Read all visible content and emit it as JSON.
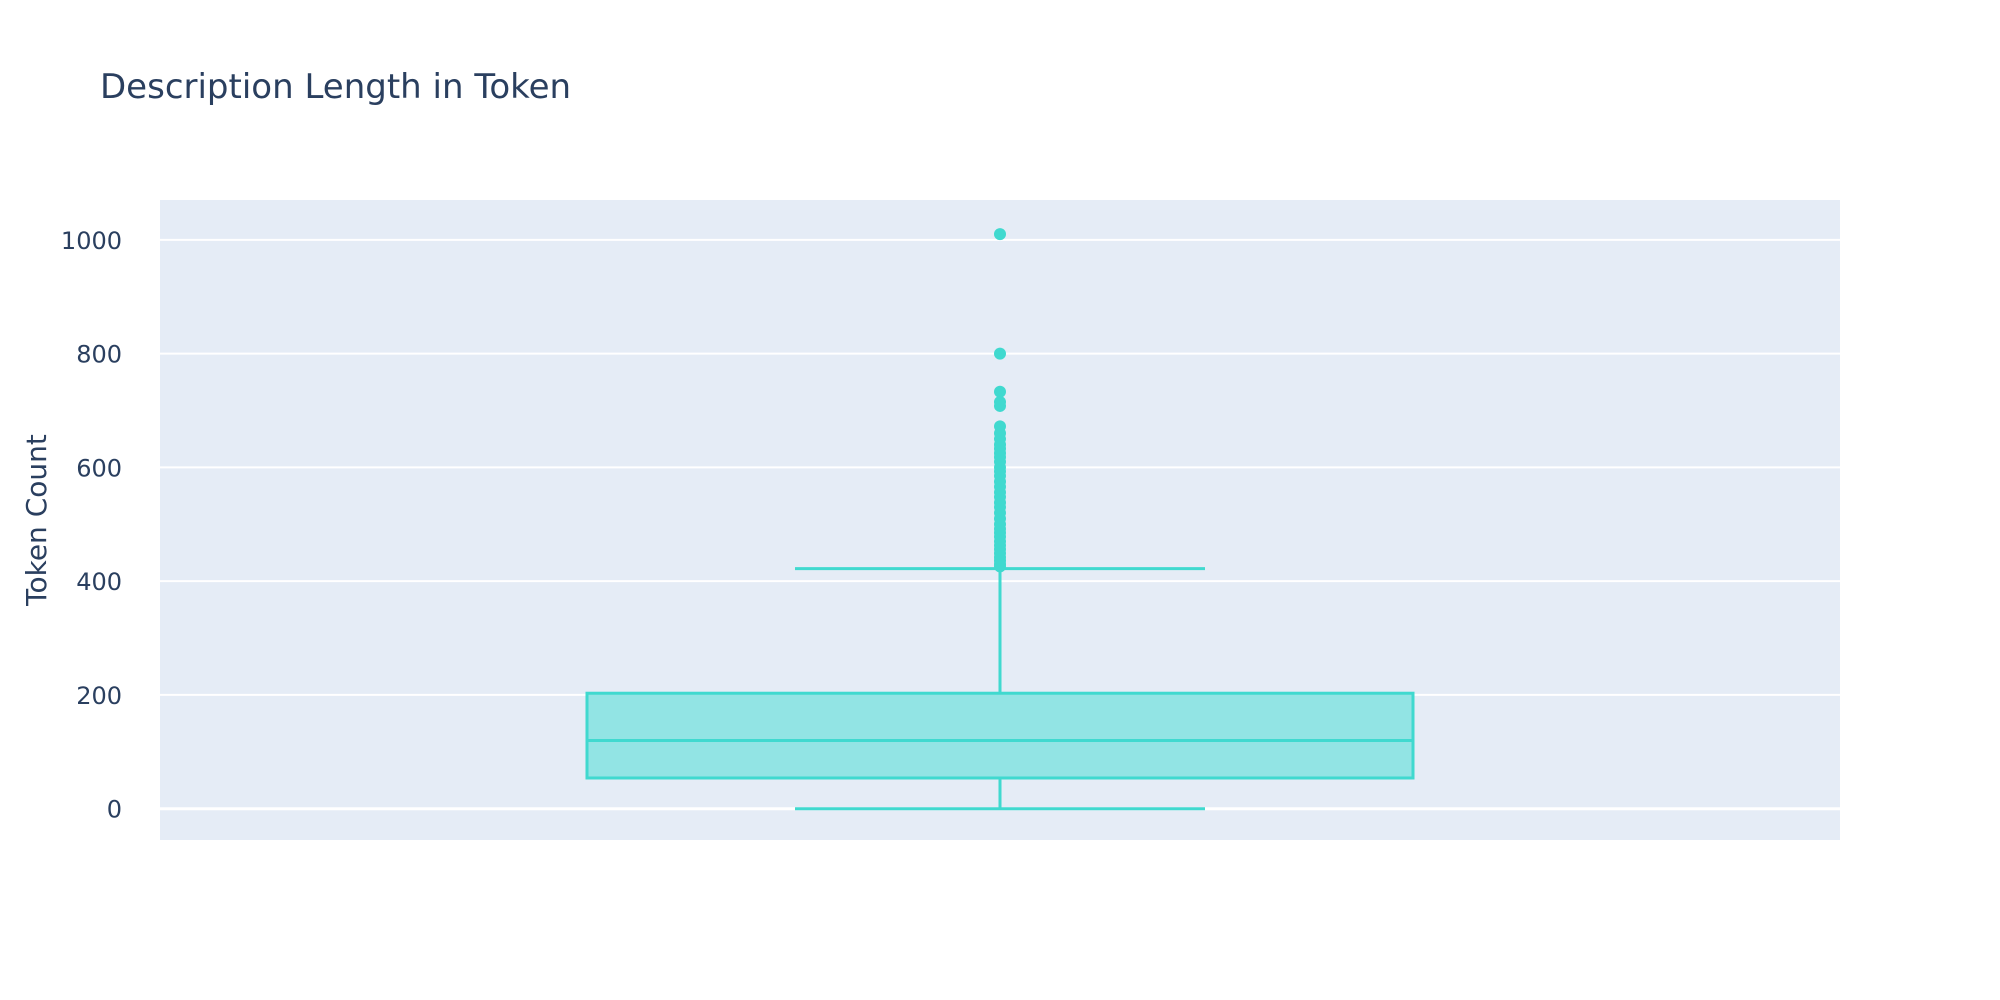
{
  "chart_data": {
    "type": "box",
    "title": "Description Length in Token",
    "xlabel": "",
    "ylabel": "Token Count",
    "ylim": [
      -55,
      1070
    ],
    "yticks": [
      0,
      200,
      400,
      600,
      800,
      1000
    ],
    "grid": true,
    "legend": "none",
    "colors": {
      "plot_background": "#e5ecf6",
      "grid": "#ffffff",
      "box_line": "#40d9cf",
      "box_fill": "#92e4e4",
      "text": "#2a3f5f"
    },
    "box": {
      "min": 0,
      "q1": 54,
      "median": 120,
      "q3": 203,
      "upper_fence": 422,
      "outliers": [
        1010,
        800,
        733,
        715,
        708,
        672,
        660,
        650,
        640,
        633,
        625,
        618,
        610,
        600,
        593,
        585,
        575,
        566,
        556,
        548,
        538,
        530,
        520,
        510,
        500,
        492,
        485,
        478,
        470,
        463,
        456,
        449,
        442,
        436,
        430,
        426
      ]
    }
  }
}
